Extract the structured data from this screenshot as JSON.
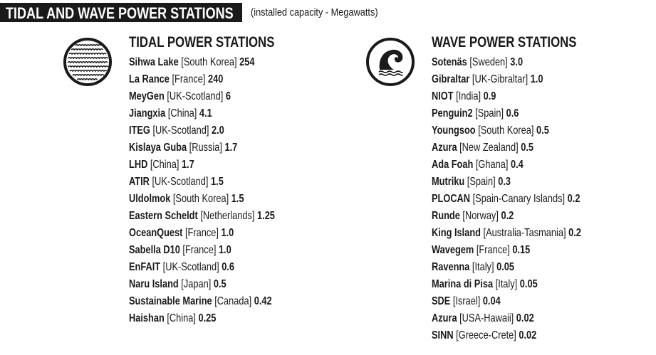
{
  "header": {
    "title": "TIDAL AND WAVE POWER STATIONS",
    "subtitle": "(installed capacity - Megawatts)"
  },
  "tidal": {
    "title": "TIDAL POWER STATIONS",
    "icon": "tidal-waves-icon",
    "items": [
      {
        "name": "Sihwa Lake",
        "country": "[South Korea]",
        "value": "254"
      },
      {
        "name": "La Rance",
        "country": "[France]",
        "value": "240"
      },
      {
        "name": "MeyGen",
        "country": "[UK-Scotland]",
        "value": "6"
      },
      {
        "name": "Jiangxia",
        "country": "[China]",
        "value": "4.1"
      },
      {
        "name": "ITEG",
        "country": "[UK-Scotland]",
        "value": "2.0"
      },
      {
        "name": "Kislaya Guba",
        "country": "[Russia]",
        "value": "1.7"
      },
      {
        "name": "LHD",
        "country": "[China]",
        "value": "1.7"
      },
      {
        "name": "ATIR",
        "country": "[UK-Scotland]",
        "value": "1.5"
      },
      {
        "name": "Uldolmok",
        "country": "[South Korea]",
        "value": "1.5"
      },
      {
        "name": "Eastern Scheldt",
        "country": "[Netherlands]",
        "value": "1.25"
      },
      {
        "name": "OceanQuest",
        "country": "[France]",
        "value": "1.0"
      },
      {
        "name": "Sabella D10",
        "country": "[France]",
        "value": "1.0"
      },
      {
        "name": "EnFAIT",
        "country": "[UK-Scotland]",
        "value": "0.6"
      },
      {
        "name": "Naru Island",
        "country": "[Japan]",
        "value": "0.5"
      },
      {
        "name": "Sustainable Marine",
        "country": "[Canada]",
        "value": "0.42"
      },
      {
        "name": "Haishan",
        "country": "[China]",
        "value": "0.25"
      }
    ]
  },
  "wave": {
    "title": "WAVE POWER STATIONS",
    "icon": "breaking-wave-icon",
    "items": [
      {
        "name": "Sotenäs",
        "country": "[Sweden]",
        "value": "3.0"
      },
      {
        "name": "Gibraltar",
        "country": "[UK-Gibraltar]",
        "value": "1.0"
      },
      {
        "name": "NIOT",
        "country": "[India]",
        "value": "0.9"
      },
      {
        "name": "Penguin2",
        "country": "[Spain]",
        "value": "0.6"
      },
      {
        "name": "Youngsoo",
        "country": "[South Korea]",
        "value": "0.5"
      },
      {
        "name": "Azura",
        "country": "[New Zealand]",
        "value": "0.5"
      },
      {
        "name": "Ada Foah",
        "country": "[Ghana]",
        "value": "0.4"
      },
      {
        "name": "Mutriku",
        "country": "[Spain]",
        "value": "0.3"
      },
      {
        "name": "PLOCAN",
        "country": "[Spain-Canary Islands]",
        "value": "0.2"
      },
      {
        "name": "Runde",
        "country": "[Norway]",
        "value": "0.2"
      },
      {
        "name": "King Island",
        "country": "[Australia-Tasmania]",
        "value": "0.2"
      },
      {
        "name": "Wavegem",
        "country": "[France]",
        "value": "0.15"
      },
      {
        "name": "Ravenna",
        "country": "[Italy]",
        "value": "0.05"
      },
      {
        "name": "Marina di Pisa",
        "country": "[Italy]",
        "value": "0.05"
      },
      {
        "name": "SDE",
        "country": "[Israel]",
        "value": "0.04"
      },
      {
        "name": "Azura",
        "country": "[USA-Hawaii]",
        "value": "0.02"
      },
      {
        "name": "SINN",
        "country": "[Greece-Crete]",
        "value": "0.02"
      }
    ]
  }
}
